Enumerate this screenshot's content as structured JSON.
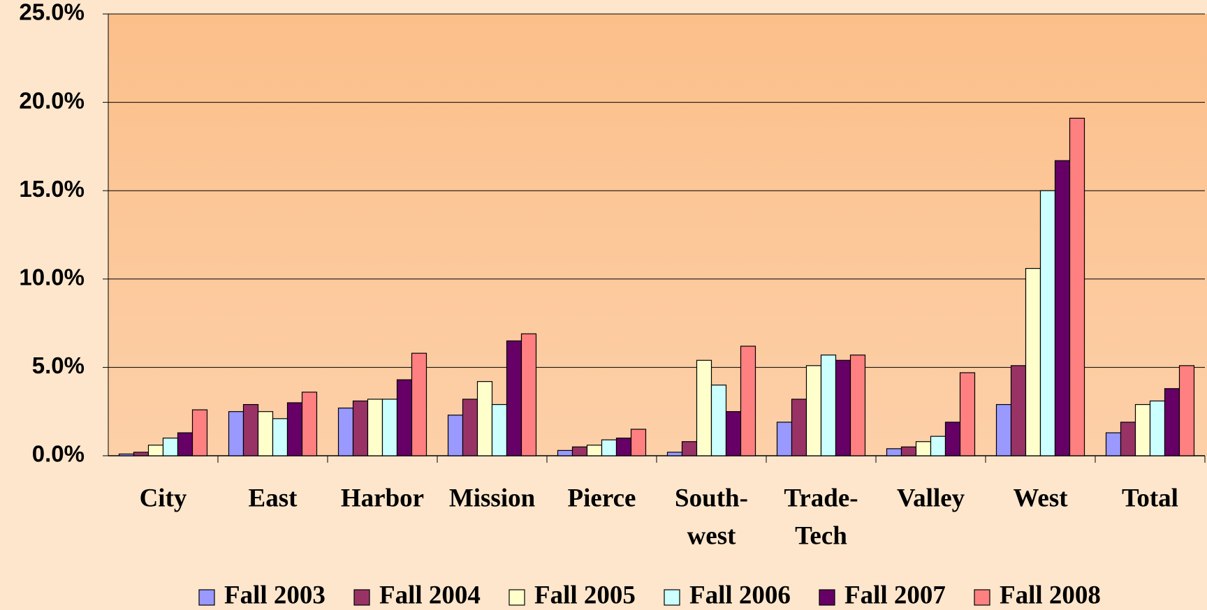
{
  "chart_data": {
    "type": "bar",
    "categories": [
      [
        "City"
      ],
      [
        "East"
      ],
      [
        "Harbor"
      ],
      [
        "Mission"
      ],
      [
        "Pierce"
      ],
      [
        "South-",
        "west"
      ],
      [
        "Trade-",
        "Tech"
      ],
      [
        "Valley"
      ],
      [
        "West"
      ],
      [
        "Total"
      ]
    ],
    "series": [
      {
        "name": "Fall 2003",
        "color": "#9999ff",
        "values": [
          0.1,
          2.5,
          2.7,
          2.3,
          0.3,
          0.2,
          1.9,
          0.4,
          2.9,
          1.3
        ]
      },
      {
        "name": "Fall 2004",
        "color": "#993366",
        "values": [
          0.2,
          2.9,
          3.1,
          3.2,
          0.5,
          0.8,
          3.2,
          0.5,
          5.1,
          1.9
        ]
      },
      {
        "name": "Fall 2005",
        "color": "#ffffcc",
        "values": [
          0.6,
          2.5,
          3.2,
          4.2,
          0.6,
          5.4,
          5.1,
          0.8,
          10.6,
          2.9
        ]
      },
      {
        "name": "Fall 2006",
        "color": "#ccffff",
        "values": [
          1.0,
          2.1,
          3.2,
          2.9,
          0.9,
          4.0,
          5.7,
          1.1,
          15.0,
          3.1
        ]
      },
      {
        "name": "Fall 2007",
        "color": "#660066",
        "values": [
          1.3,
          3.0,
          4.3,
          6.5,
          1.0,
          2.5,
          5.4,
          1.9,
          16.7,
          3.8
        ]
      },
      {
        "name": "Fall 2008",
        "color": "#ff8080",
        "values": [
          2.6,
          3.6,
          5.8,
          6.9,
          1.5,
          6.2,
          5.7,
          4.7,
          19.1,
          5.1
        ]
      }
    ],
    "ylim": [
      0,
      25
    ],
    "yticks": [
      {
        "value": 0,
        "label": "0.0%"
      },
      {
        "value": 5,
        "label": "5.0%"
      },
      {
        "value": 10,
        "label": "10.0%"
      },
      {
        "value": 15,
        "label": "15.0%"
      },
      {
        "value": 20,
        "label": "20.0%"
      },
      {
        "value": 25,
        "label": "25.0%"
      }
    ],
    "grid": true,
    "legend": "bottom"
  }
}
